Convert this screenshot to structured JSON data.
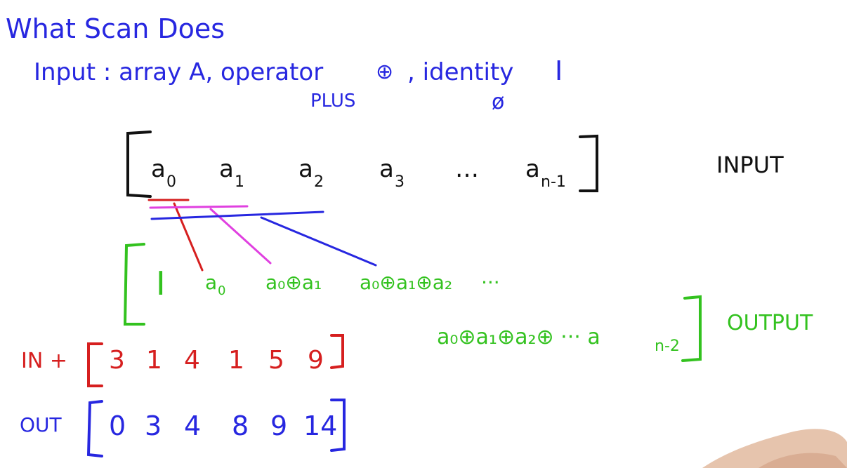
{
  "title": "What Scan Does",
  "input_line": {
    "prefix": "Input : array A, operator",
    "operator_symbol": "⊕",
    "mid": ", identity",
    "identity_symbol": "I",
    "operator_note": "PLUS",
    "identity_note": "ø"
  },
  "input_array": {
    "elements": [
      {
        "base": "a",
        "sub": "0"
      },
      {
        "base": "a",
        "sub": "1"
      },
      {
        "base": "a",
        "sub": "2"
      },
      {
        "base": "a",
        "sub": "3"
      },
      {
        "base": "…",
        "sub": ""
      },
      {
        "base": "a",
        "sub": "n-1"
      }
    ],
    "label": "INPUT"
  },
  "output_array": {
    "first": "I",
    "terms": [
      {
        "text": "a",
        "sub": "0"
      },
      {
        "text": "a₀⊕a₁",
        "sub": ""
      },
      {
        "text": "a₀⊕a₁⊕a₂",
        "sub": ""
      },
      {
        "text": "···",
        "sub": ""
      }
    ],
    "last_term": {
      "text": "a₀⊕a₁⊕a₂⊕ ··· a",
      "sub": "n-2"
    },
    "label": "OUTPUT"
  },
  "example": {
    "in_label": "IN +",
    "in_values": [
      "3",
      "1",
      "4",
      "1",
      "5",
      "9"
    ],
    "out_label": "OUT",
    "out_values": [
      "0",
      "3",
      "4",
      "8",
      "9",
      "14"
    ]
  },
  "colors": {
    "title": "#2727e0",
    "input_array": "#111111",
    "output_array": "#33c21f",
    "example_in": "#d61f1f",
    "example_out": "#2727e0",
    "connector_red": "#d61f1f",
    "connector_pink": "#e040e0",
    "connector_blue": "#2727e0"
  }
}
